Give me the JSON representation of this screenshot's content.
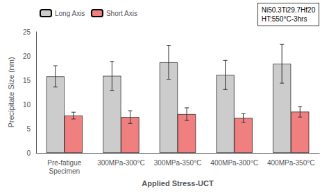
{
  "chart_data": {
    "type": "bar",
    "categories": [
      "Pre-fatigue\nSpecimen",
      "300MPa-300°C",
      "300MPa-350°C",
      "400MPa-300°C",
      "400MPa-350°C"
    ],
    "series": [
      {
        "name": "Long Axis",
        "color": "#cccccc",
        "values": [
          15.8,
          15.9,
          18.7,
          16.1,
          18.4
        ],
        "errors": [
          2.2,
          3.0,
          3.5,
          3.0,
          4.0
        ]
      },
      {
        "name": "Short Axis",
        "color": "#f08080",
        "values": [
          7.7,
          7.4,
          8.0,
          7.2,
          8.5
        ],
        "errors": [
          0.7,
          1.3,
          1.3,
          0.9,
          1.1
        ]
      }
    ],
    "ylabel": "Precipitate Size (nm)",
    "xlabel": "Applied Stress-UCT",
    "ylim": [
      0,
      25
    ],
    "yticks": [
      0,
      5,
      10,
      15,
      20,
      25
    ],
    "annotation": "Ni50.3Ti29.7Hf20\nHT:550°C-3hrs",
    "legend": "upper left",
    "grid": false
  }
}
